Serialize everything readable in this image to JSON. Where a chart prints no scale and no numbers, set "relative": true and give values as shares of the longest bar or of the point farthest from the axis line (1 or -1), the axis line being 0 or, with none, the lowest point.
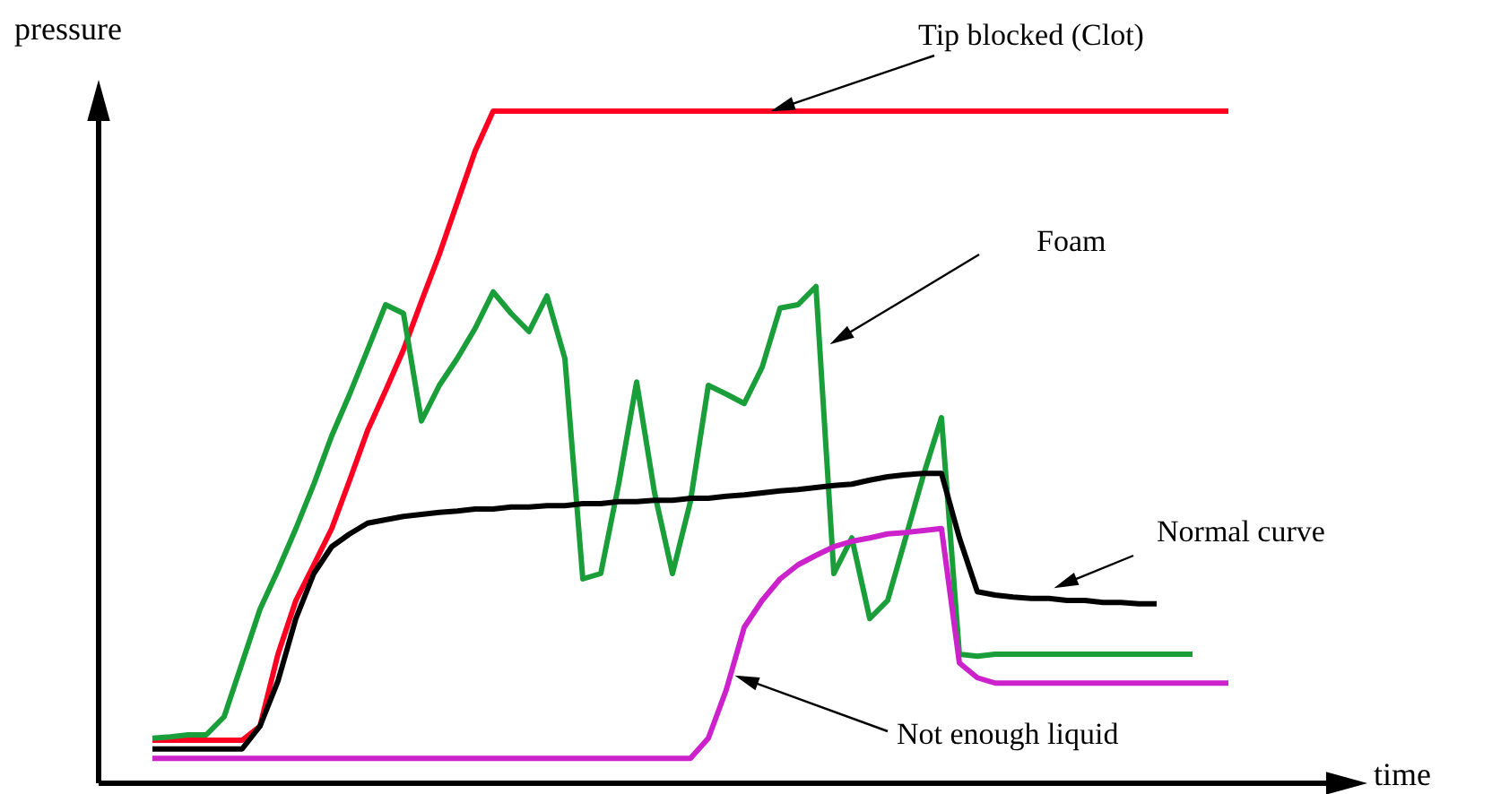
{
  "chart_data": {
    "type": "line",
    "relative": true,
    "xlabel": "time",
    "ylabel": "pressure",
    "marker": "none",
    "line_style": "solid",
    "categories": [
      null,
      null,
      null,
      null,
      null,
      null,
      null,
      null,
      null,
      null,
      null,
      null,
      null,
      null,
      null,
      null,
      null,
      null,
      null,
      null,
      null,
      null,
      null,
      null,
      null,
      null,
      null,
      null,
      null,
      null,
      null,
      null,
      null,
      null,
      null,
      null,
      null,
      null,
      null,
      null,
      null,
      null,
      null,
      null,
      null,
      null,
      null,
      null,
      null,
      null,
      null,
      null,
      null,
      null,
      null,
      null,
      null,
      null,
      null,
      null,
      null
    ],
    "series": [
      {
        "color": "#ff0022",
        "values": [
          0.064,
          0.064,
          0.064,
          0.064,
          0.064,
          0.064,
          0.085,
          0.192,
          0.272,
          0.325,
          0.379,
          0.451,
          0.525,
          0.584,
          0.645,
          0.717,
          0.787,
          0.864,
          0.941,
          1.0,
          1.0,
          1.0,
          1.0,
          1.0,
          1.0,
          1.0,
          1.0,
          1.0,
          1.0,
          1.0,
          1.0,
          1.0,
          1.0,
          1.0,
          1.0,
          1.0,
          1.0,
          1.0,
          1.0,
          1.0,
          1.0,
          1.0,
          1.0,
          1.0,
          1.0,
          1.0,
          1.0,
          1.0,
          1.0,
          1.0,
          1.0,
          1.0,
          1.0,
          1.0,
          1.0,
          1.0,
          1.0,
          1.0,
          1.0,
          1.0,
          1.0
        ]
      },
      {
        "color": "#1a9e3a",
        "values": [
          0.067,
          0.069,
          0.072,
          0.072,
          0.099,
          0.179,
          0.259,
          0.317,
          0.379,
          0.445,
          0.517,
          0.579,
          0.645,
          0.712,
          0.699,
          0.539,
          0.592,
          0.632,
          0.677,
          0.731,
          0.699,
          0.672,
          0.725,
          0.632,
          0.304,
          0.312,
          0.445,
          0.597,
          0.432,
          0.312,
          0.419,
          0.592,
          0.579,
          0.565,
          0.619,
          0.707,
          0.712,
          0.739,
          0.312,
          0.365,
          0.245,
          0.272,
          0.365,
          0.459,
          0.544,
          0.192,
          0.189,
          0.192,
          0.192,
          0.192,
          0.192,
          0.192,
          0.192,
          0.192,
          0.192,
          0.192,
          0.192,
          0.192,
          0.192,
          null,
          null
        ]
      },
      {
        "color": "#000000",
        "values": [
          0.051,
          0.051,
          0.051,
          0.051,
          0.051,
          0.051,
          0.085,
          0.152,
          0.245,
          0.312,
          0.352,
          0.371,
          0.387,
          0.392,
          0.397,
          0.4,
          0.403,
          0.405,
          0.408,
          0.408,
          0.411,
          0.411,
          0.413,
          0.413,
          0.416,
          0.416,
          0.419,
          0.419,
          0.421,
          0.421,
          0.424,
          0.424,
          0.427,
          0.429,
          0.432,
          0.435,
          0.437,
          0.44,
          0.443,
          0.445,
          0.451,
          0.456,
          0.459,
          0.461,
          0.461,
          0.365,
          0.285,
          0.28,
          0.277,
          0.275,
          0.275,
          0.272,
          0.272,
          0.269,
          0.269,
          0.267,
          0.267,
          null,
          null,
          null,
          null
        ]
      },
      {
        "color": "#cc22cc",
        "values": [
          0.037,
          0.037,
          0.037,
          0.037,
          0.037,
          0.037,
          0.037,
          0.037,
          0.037,
          0.037,
          0.037,
          0.037,
          0.037,
          0.037,
          0.037,
          0.037,
          0.037,
          0.037,
          0.037,
          0.037,
          0.037,
          0.037,
          0.037,
          0.037,
          0.037,
          0.037,
          0.037,
          0.037,
          0.037,
          0.037,
          0.037,
          0.067,
          0.139,
          0.232,
          0.272,
          0.304,
          0.325,
          0.339,
          0.352,
          0.36,
          0.365,
          0.371,
          0.373,
          0.376,
          0.379,
          0.179,
          0.157,
          0.149,
          0.149,
          0.149,
          0.149,
          0.149,
          0.149,
          0.149,
          0.149,
          0.149,
          0.149,
          0.149,
          0.149,
          0.149,
          0.149
        ]
      }
    ],
    "annotations": [
      "Tip blocked (Clot)",
      "Foam",
      "Normal curve",
      "Not enough liquid"
    ]
  }
}
